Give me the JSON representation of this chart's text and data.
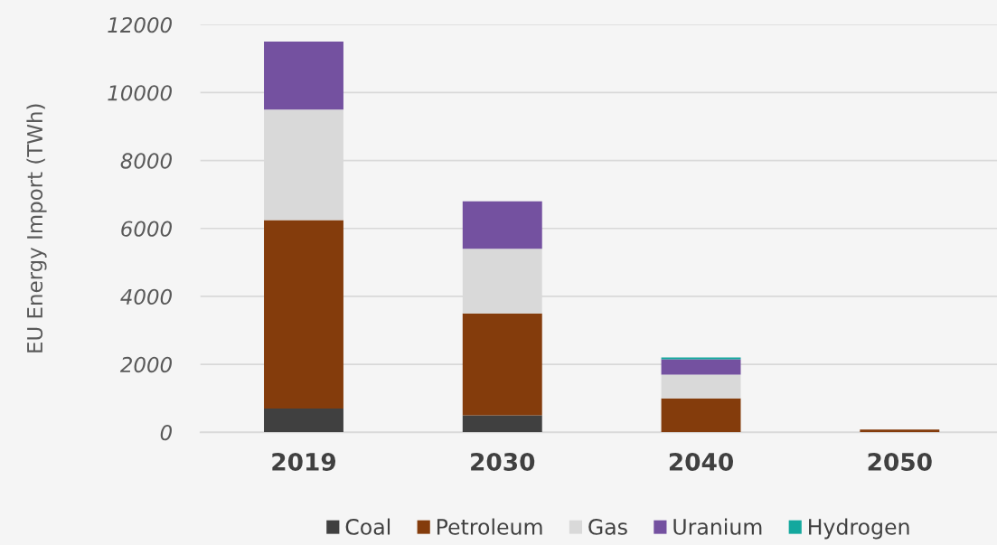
{
  "chart_data": {
    "type": "bar",
    "stacked": true,
    "ylabel": "EU Energy Import (TWh)",
    "categories": [
      "2019",
      "2030",
      "2040",
      "2050"
    ],
    "series": [
      {
        "name": "Coal",
        "color": "#404040",
        "values": [
          700,
          500,
          0,
          0
        ]
      },
      {
        "name": "Petroleum",
        "color": "#843c0c",
        "values": [
          5550,
          3000,
          1000,
          80
        ]
      },
      {
        "name": "Gas",
        "color": "#d9d9d9",
        "values": [
          3250,
          1900,
          700,
          0
        ]
      },
      {
        "name": "Uranium",
        "color": "#7451a0",
        "values": [
          2000,
          1400,
          450,
          0
        ]
      },
      {
        "name": "Hydrogen",
        "color": "#14a89e",
        "values": [
          0,
          0,
          50,
          0
        ]
      }
    ],
    "ylim": [
      0,
      12000
    ],
    "yticks": [
      0,
      2000,
      4000,
      6000,
      8000,
      10000,
      12000
    ],
    "grid": "y",
    "legend": "bottom"
  }
}
